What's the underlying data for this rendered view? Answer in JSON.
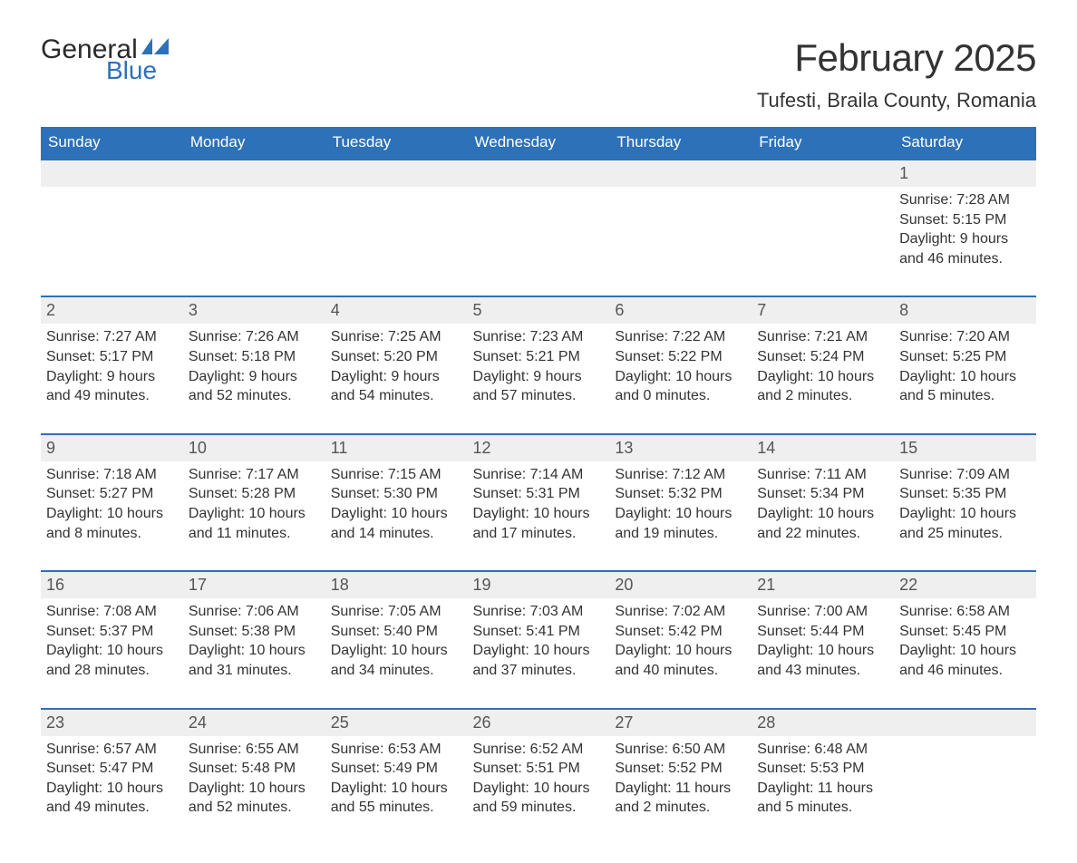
{
  "logo": {
    "word1": "General",
    "word2": "Blue"
  },
  "title": "February 2025",
  "location": "Tufesti, Braila County, Romania",
  "colors": {
    "header_bg": "#2d71b8",
    "header_text": "#ffffff",
    "daynum_bg": "#efefef",
    "daynum_border": "#2d71b8",
    "body_text": "#333333",
    "logo_blue": "#2d71b8"
  },
  "fonts": {
    "title_size_pt": 32,
    "location_size_pt": 17,
    "dow_size_pt": 13,
    "daynum_size_pt": 14,
    "detail_size_pt": 12
  },
  "days_of_week": [
    "Sunday",
    "Monday",
    "Tuesday",
    "Wednesday",
    "Thursday",
    "Friday",
    "Saturday"
  ],
  "labels": {
    "sunrise": "Sunrise:",
    "sunset": "Sunset:",
    "daylight": "Daylight:"
  },
  "weeks": [
    [
      null,
      null,
      null,
      null,
      null,
      null,
      {
        "n": "1",
        "sunrise": "7:28 AM",
        "sunset": "5:15 PM",
        "daylight": "9 hours and 46 minutes."
      }
    ],
    [
      {
        "n": "2",
        "sunrise": "7:27 AM",
        "sunset": "5:17 PM",
        "daylight": "9 hours and 49 minutes."
      },
      {
        "n": "3",
        "sunrise": "7:26 AM",
        "sunset": "5:18 PM",
        "daylight": "9 hours and 52 minutes."
      },
      {
        "n": "4",
        "sunrise": "7:25 AM",
        "sunset": "5:20 PM",
        "daylight": "9 hours and 54 minutes."
      },
      {
        "n": "5",
        "sunrise": "7:23 AM",
        "sunset": "5:21 PM",
        "daylight": "9 hours and 57 minutes."
      },
      {
        "n": "6",
        "sunrise": "7:22 AM",
        "sunset": "5:22 PM",
        "daylight": "10 hours and 0 minutes."
      },
      {
        "n": "7",
        "sunrise": "7:21 AM",
        "sunset": "5:24 PM",
        "daylight": "10 hours and 2 minutes."
      },
      {
        "n": "8",
        "sunrise": "7:20 AM",
        "sunset": "5:25 PM",
        "daylight": "10 hours and 5 minutes."
      }
    ],
    [
      {
        "n": "9",
        "sunrise": "7:18 AM",
        "sunset": "5:27 PM",
        "daylight": "10 hours and 8 minutes."
      },
      {
        "n": "10",
        "sunrise": "7:17 AM",
        "sunset": "5:28 PM",
        "daylight": "10 hours and 11 minutes."
      },
      {
        "n": "11",
        "sunrise": "7:15 AM",
        "sunset": "5:30 PM",
        "daylight": "10 hours and 14 minutes."
      },
      {
        "n": "12",
        "sunrise": "7:14 AM",
        "sunset": "5:31 PM",
        "daylight": "10 hours and 17 minutes."
      },
      {
        "n": "13",
        "sunrise": "7:12 AM",
        "sunset": "5:32 PM",
        "daylight": "10 hours and 19 minutes."
      },
      {
        "n": "14",
        "sunrise": "7:11 AM",
        "sunset": "5:34 PM",
        "daylight": "10 hours and 22 minutes."
      },
      {
        "n": "15",
        "sunrise": "7:09 AM",
        "sunset": "5:35 PM",
        "daylight": "10 hours and 25 minutes."
      }
    ],
    [
      {
        "n": "16",
        "sunrise": "7:08 AM",
        "sunset": "5:37 PM",
        "daylight": "10 hours and 28 minutes."
      },
      {
        "n": "17",
        "sunrise": "7:06 AM",
        "sunset": "5:38 PM",
        "daylight": "10 hours and 31 minutes."
      },
      {
        "n": "18",
        "sunrise": "7:05 AM",
        "sunset": "5:40 PM",
        "daylight": "10 hours and 34 minutes."
      },
      {
        "n": "19",
        "sunrise": "7:03 AM",
        "sunset": "5:41 PM",
        "daylight": "10 hours and 37 minutes."
      },
      {
        "n": "20",
        "sunrise": "7:02 AM",
        "sunset": "5:42 PM",
        "daylight": "10 hours and 40 minutes."
      },
      {
        "n": "21",
        "sunrise": "7:00 AM",
        "sunset": "5:44 PM",
        "daylight": "10 hours and 43 minutes."
      },
      {
        "n": "22",
        "sunrise": "6:58 AM",
        "sunset": "5:45 PM",
        "daylight": "10 hours and 46 minutes."
      }
    ],
    [
      {
        "n": "23",
        "sunrise": "6:57 AM",
        "sunset": "5:47 PM",
        "daylight": "10 hours and 49 minutes."
      },
      {
        "n": "24",
        "sunrise": "6:55 AM",
        "sunset": "5:48 PM",
        "daylight": "10 hours and 52 minutes."
      },
      {
        "n": "25",
        "sunrise": "6:53 AM",
        "sunset": "5:49 PM",
        "daylight": "10 hours and 55 minutes."
      },
      {
        "n": "26",
        "sunrise": "6:52 AM",
        "sunset": "5:51 PM",
        "daylight": "10 hours and 59 minutes."
      },
      {
        "n": "27",
        "sunrise": "6:50 AM",
        "sunset": "5:52 PM",
        "daylight": "11 hours and 2 minutes."
      },
      {
        "n": "28",
        "sunrise": "6:48 AM",
        "sunset": "5:53 PM",
        "daylight": "11 hours and 5 minutes."
      },
      null
    ]
  ]
}
